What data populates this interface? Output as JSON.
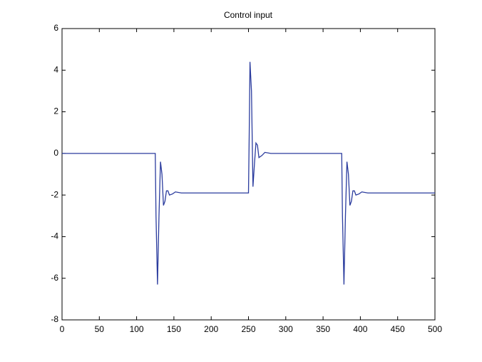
{
  "chart_data": {
    "type": "line",
    "title": "Control input",
    "x": [
      0,
      125,
      126,
      128,
      130,
      132,
      134,
      136,
      138,
      140,
      142,
      144,
      148,
      152,
      160,
      250,
      251,
      252,
      254,
      256,
      258,
      260,
      262,
      264,
      268,
      272,
      280,
      375,
      376,
      378,
      380,
      382,
      384,
      386,
      388,
      390,
      392,
      394,
      398,
      402,
      410,
      500
    ],
    "series": [
      {
        "color": "#2b3c9e",
        "values": [
          0,
          0,
          -3,
          -6.3,
          -3,
          -0.4,
          -1,
          -2.5,
          -2.3,
          -1.8,
          -1.8,
          -2.0,
          -1.95,
          -1.85,
          -1.9,
          -1.9,
          1,
          4.4,
          3,
          -1.6,
          -0.5,
          0.5,
          0.4,
          -0.2,
          -0.1,
          0.05,
          0,
          0,
          -3,
          -6.3,
          -3,
          -0.4,
          -1,
          -2.5,
          -2.3,
          -1.8,
          -1.8,
          -2.0,
          -1.95,
          -1.85,
          -1.9,
          -1.9
        ]
      }
    ],
    "xlim": [
      0,
      500
    ],
    "xticks": [
      0,
      50,
      100,
      150,
      200,
      250,
      300,
      350,
      400,
      450,
      500
    ],
    "ylim": [
      -8,
      6
    ],
    "yticks": [
      -8,
      -6,
      -4,
      -2,
      0,
      2,
      4,
      6
    ],
    "grid": false
  }
}
